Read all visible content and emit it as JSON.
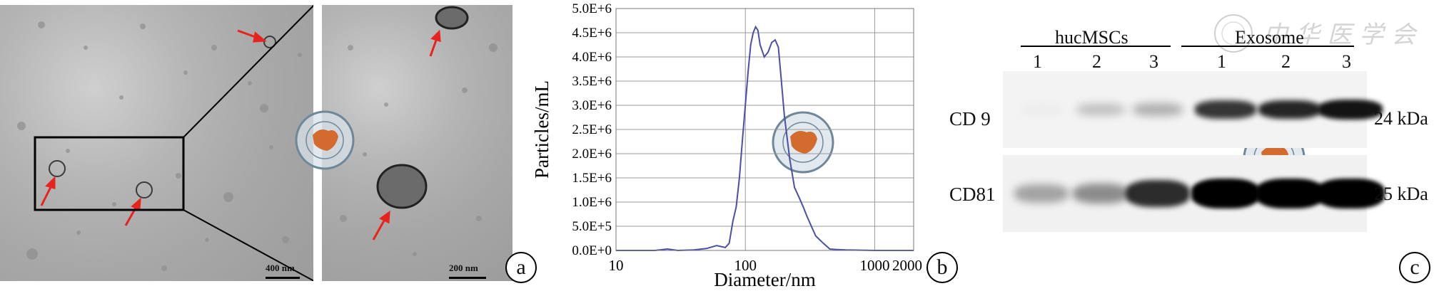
{
  "panel_a": {
    "tag": "a",
    "scale_left": "400 nm",
    "scale_right": "200 nm"
  },
  "panel_b": {
    "tag": "b"
  },
  "panel_c": {
    "tag": "c",
    "group_left": "hucMSCs",
    "group_right": "Exosome",
    "lanes": [
      "1",
      "2",
      "3",
      "1",
      "2",
      "3"
    ],
    "row1_label": "CD 9",
    "row2_label": "CD81",
    "row1_kda": "24 kDa",
    "row2_kda": "25 kDa",
    "row1_intensity": [
      0.03,
      0.22,
      0.28,
      0.78,
      0.85,
      0.92
    ],
    "row2_intensity": [
      0.32,
      0.42,
      0.82,
      1.0,
      1.0,
      1.0
    ]
  },
  "chart_data": {
    "type": "line",
    "title": "",
    "xlabel": "Diameter/nm",
    "ylabel": "Particles/mL",
    "xscale": "log",
    "xlim": [
      10,
      2000
    ],
    "ylim": [
      0,
      5000000
    ],
    "xticks": [
      {
        "value": 10,
        "label": "10"
      },
      {
        "value": 100,
        "label": "100"
      },
      {
        "value": 1000,
        "label": "1000"
      },
      {
        "value": 2000,
        "label": "2000"
      }
    ],
    "yticks": [
      {
        "value": 0,
        "label": "0.0E+0"
      },
      {
        "value": 500000,
        "label": "5.0E+5"
      },
      {
        "value": 1000000,
        "label": "1.0E+6"
      },
      {
        "value": 1500000,
        "label": "1.5E+6"
      },
      {
        "value": 2000000,
        "label": "2.0E+6"
      },
      {
        "value": 2500000,
        "label": "2.5E+6"
      },
      {
        "value": 3000000,
        "label": "3.0E+6"
      },
      {
        "value": 3500000,
        "label": "3.5E+6"
      },
      {
        "value": 4000000,
        "label": "4.0E+6"
      },
      {
        "value": 4500000,
        "label": "4.5E+6"
      },
      {
        "value": 5000000,
        "label": "5.0E+6"
      }
    ],
    "grid": true,
    "color": "#4a4fa8",
    "series": [
      {
        "points": [
          [
            10,
            0
          ],
          [
            20,
            0
          ],
          [
            25,
            30000
          ],
          [
            30,
            0
          ],
          [
            40,
            10000
          ],
          [
            50,
            40000
          ],
          [
            60,
            100000
          ],
          [
            70,
            60000
          ],
          [
            75,
            150000
          ],
          [
            80,
            600000
          ],
          [
            85,
            900000
          ],
          [
            90,
            1500000
          ],
          [
            95,
            2300000
          ],
          [
            100,
            3000000
          ],
          [
            105,
            3700000
          ],
          [
            110,
            4250000
          ],
          [
            115,
            4500000
          ],
          [
            120,
            4620000
          ],
          [
            125,
            4550000
          ],
          [
            130,
            4250000
          ],
          [
            140,
            4000000
          ],
          [
            150,
            4100000
          ],
          [
            160,
            4300000
          ],
          [
            170,
            4350000
          ],
          [
            180,
            4200000
          ],
          [
            190,
            3500000
          ],
          [
            200,
            2800000
          ],
          [
            220,
            1900000
          ],
          [
            240,
            1300000
          ],
          [
            260,
            1100000
          ],
          [
            280,
            900000
          ],
          [
            300,
            700000
          ],
          [
            330,
            450000
          ],
          [
            350,
            300000
          ],
          [
            400,
            150000
          ],
          [
            450,
            30000
          ],
          [
            500,
            20000
          ],
          [
            600,
            10000
          ],
          [
            1000,
            0
          ],
          [
            2000,
            0
          ]
        ]
      }
    ]
  }
}
